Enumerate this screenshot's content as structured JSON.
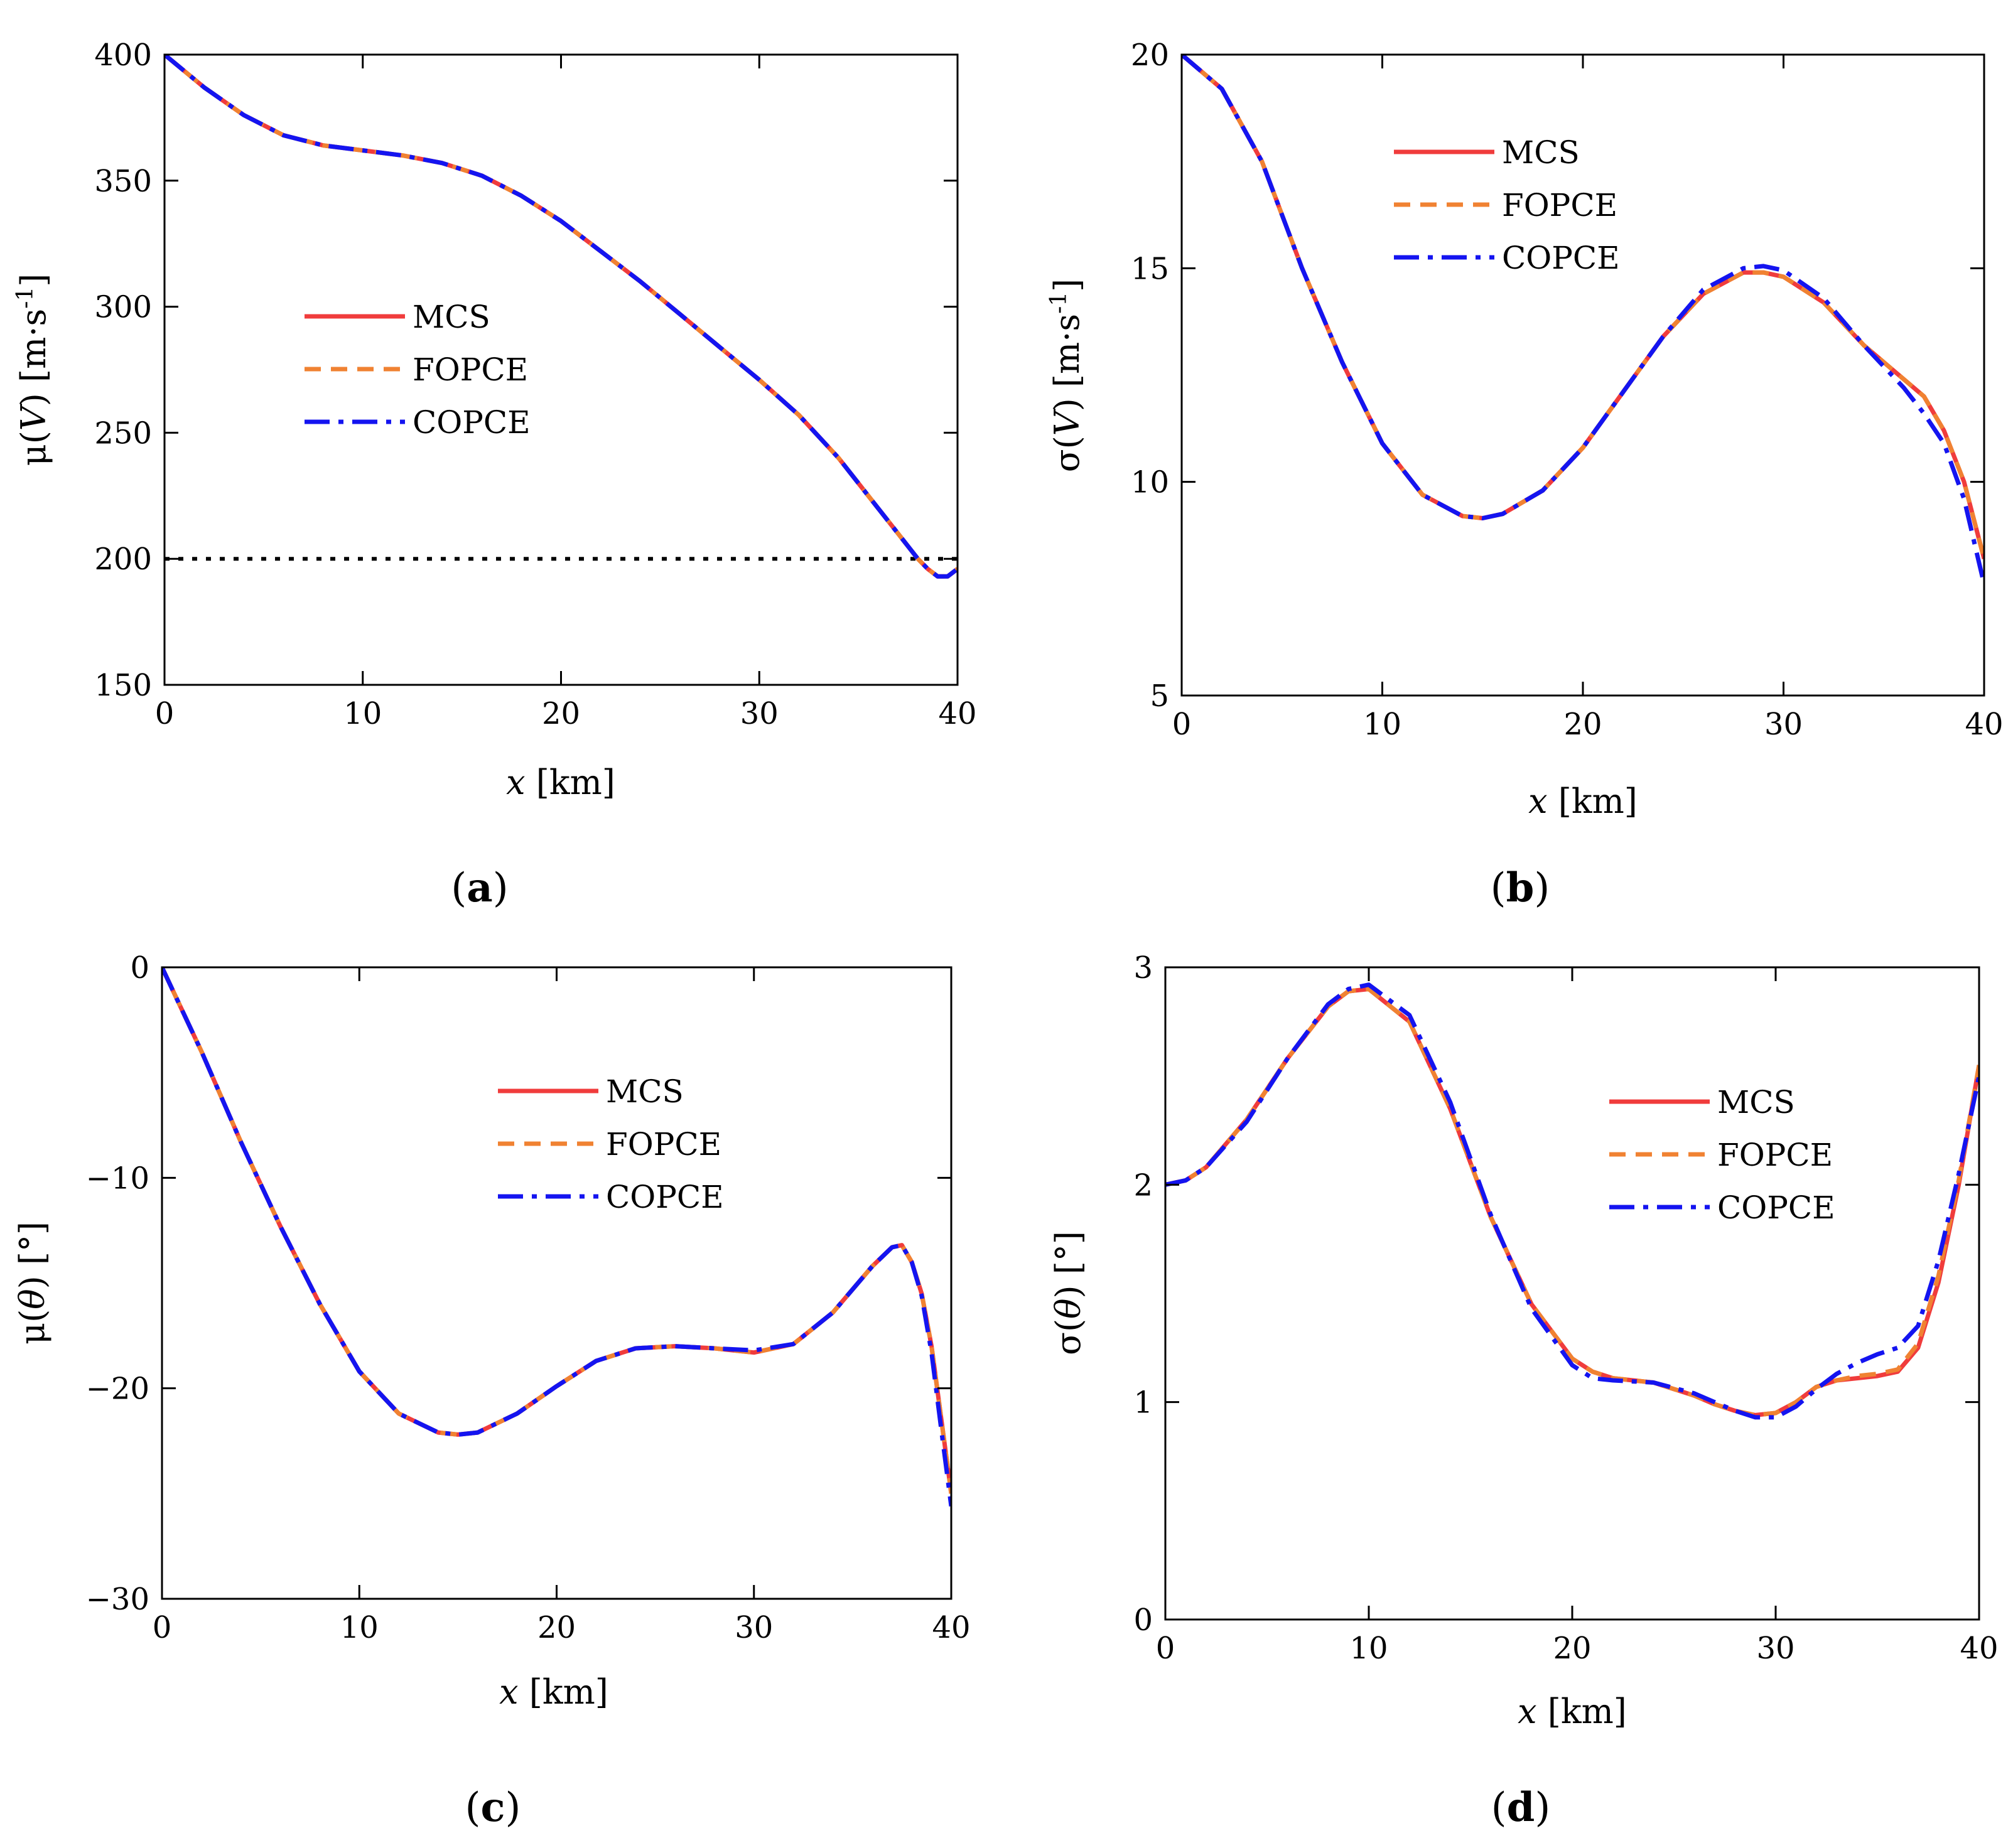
{
  "colors": {
    "MCS": "#f03c3c",
    "FOPCE": "#f08232",
    "COPCE": "#1414f0",
    "reference": "#000000"
  },
  "legend_entries": [
    "MCS",
    "FOPCE",
    "COPCE"
  ],
  "chart_data": [
    {
      "id": "a",
      "type": "line",
      "caption": {
        "open": "(",
        "letter": "a",
        "close": ")"
      },
      "xlabel": {
        "var": "x",
        "unit": " [km]"
      },
      "ylabel": {
        "pre": "μ(",
        "var": "V",
        "post": ") [m·s",
        "sup": "-1",
        "end": "]"
      },
      "xlim": [
        0,
        40
      ],
      "ylim": [
        150,
        400
      ],
      "xticks": [
        0,
        10,
        20,
        30,
        40
      ],
      "xtick_labels": [
        "0",
        "10",
        "20",
        "30",
        "40"
      ],
      "yticks": [
        150,
        200,
        250,
        300,
        350,
        400
      ],
      "ytick_labels": [
        "150",
        "200",
        "250",
        "300",
        "350",
        "400"
      ],
      "legend_position": "center-left",
      "reference_line": {
        "y": 200,
        "style": "dotted"
      },
      "x": [
        0,
        2,
        4,
        6,
        8,
        10,
        12,
        14,
        16,
        18,
        20,
        22,
        24,
        26,
        28,
        30,
        32,
        34,
        36,
        37,
        38,
        38.5,
        39,
        39.5,
        40
      ],
      "series": [
        {
          "name": "MCS",
          "values": [
            400,
            387,
            376,
            368,
            364,
            362,
            360,
            357,
            352,
            344,
            334,
            322,
            310,
            297,
            284,
            271,
            257,
            240,
            220,
            210,
            200,
            196,
            193,
            193,
            196
          ]
        },
        {
          "name": "FOPCE",
          "values": [
            400,
            387,
            376,
            368,
            364,
            362,
            360,
            357,
            352,
            344,
            334,
            322,
            310,
            297,
            284,
            271,
            257,
            240,
            220,
            210,
            200,
            196,
            193,
            193,
            196
          ]
        },
        {
          "name": "COPCE",
          "values": [
            400,
            387,
            376,
            368,
            364,
            362,
            360,
            357,
            352,
            344,
            334,
            322,
            310,
            297,
            284,
            271,
            257,
            240,
            220,
            210,
            200,
            196,
            193,
            193,
            196
          ]
        }
      ]
    },
    {
      "id": "b",
      "type": "line",
      "caption": {
        "open": "(",
        "letter": "b",
        "close": ")"
      },
      "xlabel": {
        "var": "x",
        "unit": " [km]"
      },
      "ylabel": {
        "pre": "σ(",
        "var": "V",
        "post": ") [m·s",
        "sup": "-1",
        "end": "]"
      },
      "xlim": [
        0,
        40
      ],
      "ylim": [
        5,
        20
      ],
      "xticks": [
        0,
        10,
        20,
        30,
        40
      ],
      "xtick_labels": [
        "0",
        "10",
        "20",
        "30",
        "40"
      ],
      "yticks": [
        5,
        10,
        15,
        20
      ],
      "ytick_labels": [
        "5",
        "10",
        "15",
        "20"
      ],
      "legend_position": "top-center",
      "x": [
        0,
        2,
        4,
        6,
        8,
        10,
        12,
        14,
        15,
        16,
        18,
        20,
        22,
        24,
        26,
        28,
        29,
        30,
        32,
        34,
        36,
        37,
        38,
        39,
        40
      ],
      "series": [
        {
          "name": "MCS",
          "values": [
            20,
            19.2,
            17.5,
            15.0,
            12.8,
            10.9,
            9.7,
            9.2,
            9.15,
            9.25,
            9.8,
            10.8,
            12.1,
            13.4,
            14.4,
            14.9,
            14.9,
            14.8,
            14.2,
            13.2,
            12.4,
            12.0,
            11.2,
            10.0,
            8.2
          ]
        },
        {
          "name": "FOPCE",
          "values": [
            20,
            19.2,
            17.5,
            15.0,
            12.8,
            10.9,
            9.7,
            9.2,
            9.15,
            9.25,
            9.8,
            10.8,
            12.1,
            13.4,
            14.4,
            14.9,
            14.9,
            14.8,
            14.2,
            13.2,
            12.4,
            12.0,
            11.2,
            10.0,
            8.2
          ]
        },
        {
          "name": "COPCE",
          "values": [
            20,
            19.2,
            17.5,
            15.0,
            12.8,
            10.9,
            9.7,
            9.2,
            9.15,
            9.25,
            9.8,
            10.8,
            12.1,
            13.4,
            14.5,
            15.0,
            15.05,
            14.95,
            14.3,
            13.2,
            12.2,
            11.6,
            10.9,
            9.6,
            7.6
          ]
        }
      ]
    },
    {
      "id": "c",
      "type": "line",
      "caption": {
        "open": "(",
        "letter": "c",
        "close": ")"
      },
      "xlabel": {
        "var": "x",
        "unit": " [km]"
      },
      "ylabel": {
        "pre": "μ(",
        "var": "θ",
        "post": ") [°]",
        "sup": "",
        "end": ""
      },
      "xlim": [
        0,
        40
      ],
      "ylim": [
        -30,
        0
      ],
      "xticks": [
        0,
        10,
        20,
        30,
        40
      ],
      "xtick_labels": [
        "0",
        "10",
        "20",
        "30",
        "40"
      ],
      "yticks": [
        -30,
        -20,
        -10,
        0
      ],
      "ytick_labels": [
        "−30",
        "−20",
        "−10",
        "0"
      ],
      "legend_position": "upper-right",
      "x": [
        0,
        2,
        4,
        6,
        8,
        10,
        12,
        14,
        15,
        16,
        18,
        20,
        22,
        24,
        26,
        28,
        30,
        32,
        34,
        36,
        37,
        37.5,
        38,
        38.5,
        39,
        39.5,
        40
      ],
      "series": [
        {
          "name": "MCS",
          "values": [
            0,
            -4.0,
            -8.3,
            -12.3,
            -16.0,
            -19.2,
            -21.2,
            -22.1,
            -22.2,
            -22.1,
            -21.2,
            -19.9,
            -18.7,
            -18.1,
            -18.0,
            -18.1,
            -18.3,
            -17.9,
            -16.4,
            -14.2,
            -13.3,
            -13.2,
            -14.0,
            -15.5,
            -18.0,
            -21.5,
            -25.0
          ]
        },
        {
          "name": "FOPCE",
          "values": [
            0,
            -4.0,
            -8.3,
            -12.3,
            -16.0,
            -19.2,
            -21.2,
            -22.1,
            -22.2,
            -22.1,
            -21.2,
            -19.9,
            -18.7,
            -18.1,
            -18.0,
            -18.1,
            -18.3,
            -17.9,
            -16.4,
            -14.2,
            -13.3,
            -13.2,
            -14.0,
            -15.5,
            -18.0,
            -21.5,
            -25.0
          ]
        },
        {
          "name": "COPCE",
          "values": [
            0,
            -4.0,
            -8.3,
            -12.3,
            -16.0,
            -19.2,
            -21.2,
            -22.1,
            -22.2,
            -22.1,
            -21.2,
            -19.9,
            -18.7,
            -18.1,
            -18.0,
            -18.1,
            -18.2,
            -17.9,
            -16.4,
            -14.2,
            -13.3,
            -13.2,
            -14.0,
            -15.6,
            -18.3,
            -22.0,
            -25.6
          ]
        }
      ]
    },
    {
      "id": "d",
      "type": "line",
      "caption": {
        "open": "(",
        "letter": "d",
        "close": ")"
      },
      "xlabel": {
        "var": "x",
        "unit": " [km]"
      },
      "ylabel": {
        "pre": "σ(",
        "var": "θ",
        "post": ") [°]",
        "sup": "",
        "end": ""
      },
      "xlim": [
        0,
        40
      ],
      "ylim": [
        0,
        3
      ],
      "xticks": [
        0,
        10,
        20,
        30,
        40
      ],
      "xtick_labels": [
        "0",
        "10",
        "20",
        "30",
        "40"
      ],
      "yticks": [
        0,
        1,
        2,
        3
      ],
      "ytick_labels": [
        "0",
        "1",
        "2",
        "3"
      ],
      "legend_position": "upper-right",
      "x": [
        0,
        1,
        2,
        4,
        6,
        8,
        9,
        10,
        12,
        14,
        16,
        18,
        20,
        21,
        22,
        24,
        26,
        27,
        28,
        29,
        30,
        31,
        32,
        33,
        34,
        35,
        36,
        37,
        38,
        39,
        40
      ],
      "series": [
        {
          "name": "MCS",
          "values": [
            2.0,
            2.02,
            2.08,
            2.3,
            2.58,
            2.82,
            2.89,
            2.9,
            2.75,
            2.35,
            1.85,
            1.45,
            1.2,
            1.14,
            1.11,
            1.09,
            1.03,
            0.99,
            0.96,
            0.94,
            0.95,
            1.0,
            1.07,
            1.1,
            1.11,
            1.12,
            1.14,
            1.25,
            1.55,
            2.0,
            2.55
          ]
        },
        {
          "name": "FOPCE",
          "values": [
            2.0,
            2.02,
            2.08,
            2.3,
            2.58,
            2.82,
            2.89,
            2.9,
            2.75,
            2.35,
            1.85,
            1.45,
            1.2,
            1.14,
            1.11,
            1.09,
            1.03,
            0.99,
            0.96,
            0.94,
            0.95,
            1.0,
            1.07,
            1.1,
            1.12,
            1.13,
            1.15,
            1.27,
            1.58,
            2.02,
            2.55
          ]
        },
        {
          "name": "COPCE",
          "values": [
            2.0,
            2.02,
            2.08,
            2.29,
            2.58,
            2.83,
            2.9,
            2.92,
            2.78,
            2.38,
            1.86,
            1.43,
            1.17,
            1.11,
            1.1,
            1.09,
            1.04,
            1.0,
            0.96,
            0.93,
            0.93,
            0.98,
            1.06,
            1.13,
            1.18,
            1.22,
            1.25,
            1.35,
            1.65,
            2.05,
            2.5
          ]
        }
      ]
    }
  ]
}
